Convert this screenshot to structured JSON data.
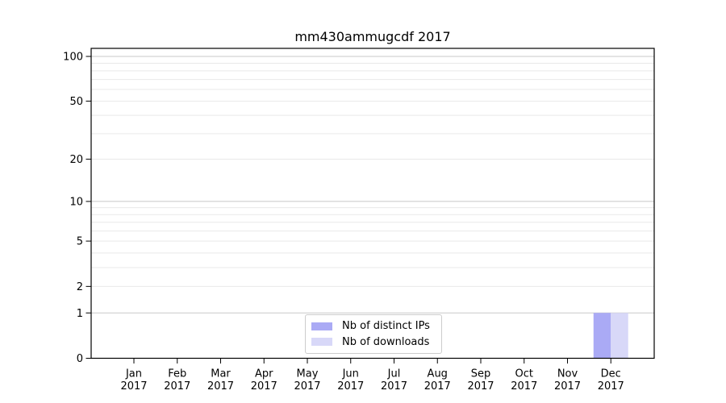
{
  "chart_data": {
    "type": "bar",
    "title": "mm430ammugcdf 2017",
    "year": "2017",
    "months": [
      "Jan",
      "Feb",
      "Mar",
      "Apr",
      "May",
      "Jun",
      "Jul",
      "Aug",
      "Sep",
      "Oct",
      "Nov",
      "Dec"
    ],
    "series": [
      {
        "id": "distinct-ips",
        "name": "Nb of distinct IPs",
        "color": "#aaaaf5",
        "values": [
          0,
          0,
          0,
          0,
          0,
          0,
          0,
          0,
          0,
          0,
          0,
          1
        ]
      },
      {
        "id": "downloads",
        "name": "Nb of downloads",
        "color": "#d8d8f8",
        "values": [
          0,
          0,
          0,
          0,
          0,
          0,
          0,
          0,
          0,
          0,
          0,
          1
        ]
      }
    ],
    "y_axis": {
      "scale": "log1p",
      "tick_values": [
        0,
        1,
        2,
        5,
        10,
        20,
        50,
        100
      ],
      "major_grid_values": [
        1,
        10,
        100
      ],
      "minor_grid_values": [
        2,
        3,
        4,
        5,
        6,
        7,
        8,
        9,
        20,
        30,
        40,
        50,
        60,
        70,
        80,
        90
      ],
      "ylim": [
        0,
        113
      ]
    },
    "legend": {
      "position": "lower center"
    },
    "colors": {
      "axis": "#000000",
      "major_grid": "#c8c8c8",
      "minor_grid": "#e9e9e9",
      "background": "#ffffff"
    }
  }
}
